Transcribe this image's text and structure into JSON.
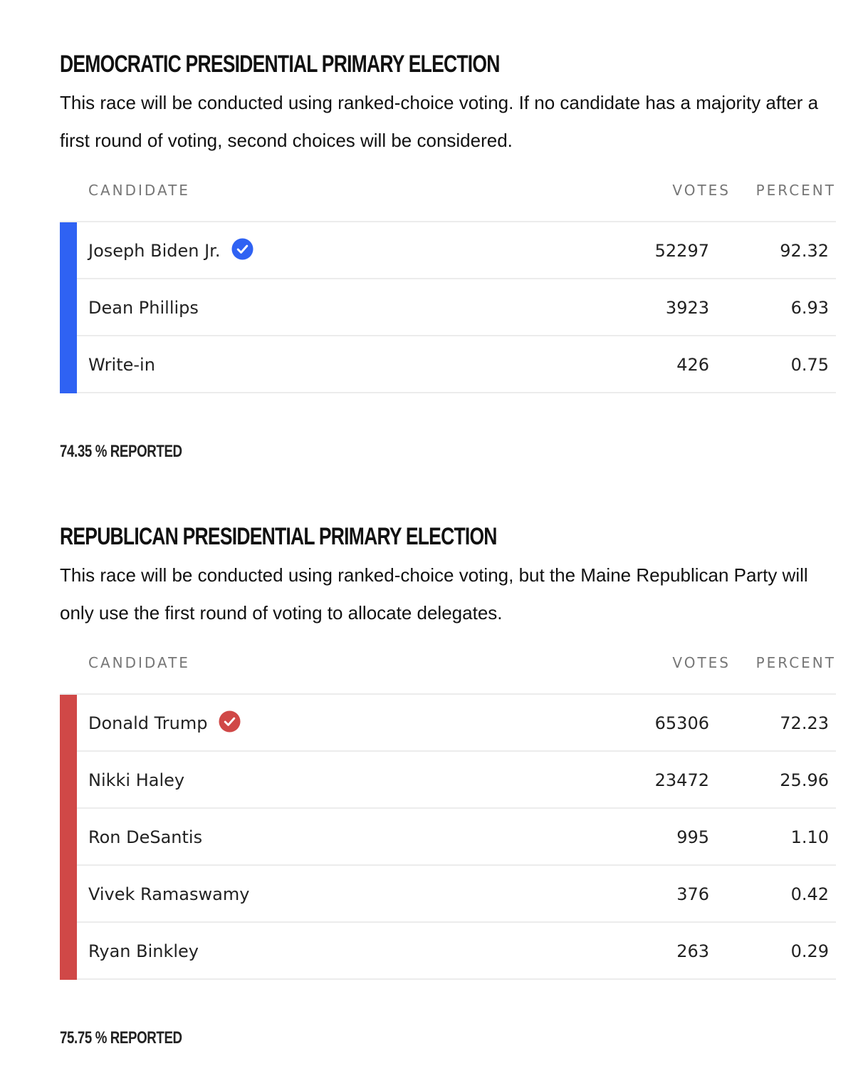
{
  "races": [
    {
      "title": "DEMOCRATIC PRESIDENTIAL PRIMARY ELECTION",
      "description": "This race will be conducted using ranked-choice voting. If no candidate has a majority after a first round of voting, second choices will be considered.",
      "headers": {
        "candidate": "CANDIDATE",
        "votes": "VOTES",
        "percent": "PERCENT"
      },
      "party_color": "#2f62f3",
      "candidates": [
        {
          "name": "Joseph Biden Jr.",
          "votes": "52297",
          "percent": "92.32",
          "winner": true
        },
        {
          "name": "Dean Phillips",
          "votes": "3923",
          "percent": "6.93",
          "winner": false
        },
        {
          "name": "Write-in",
          "votes": "426",
          "percent": "0.75",
          "winner": false
        }
      ],
      "reported": "74.35 % REPORTED"
    },
    {
      "title": "REPUBLICAN PRESIDENTIAL PRIMARY ELECTION",
      "description": "This race will be conducted using ranked-choice voting, but the Maine Republican Party will only use the first round of voting to allocate delegates.",
      "headers": {
        "candidate": "CANDIDATE",
        "votes": "VOTES",
        "percent": "PERCENT"
      },
      "party_color": "#d04847",
      "candidates": [
        {
          "name": "Donald Trump",
          "votes": "65306",
          "percent": "72.23",
          "winner": true
        },
        {
          "name": "Nikki Haley",
          "votes": "23472",
          "percent": "25.96",
          "winner": false
        },
        {
          "name": "Ron DeSantis",
          "votes": "995",
          "percent": "1.10",
          "winner": false
        },
        {
          "name": "Vivek Ramaswamy",
          "votes": "376",
          "percent": "0.42",
          "winner": false
        },
        {
          "name": "Ryan Binkley",
          "votes": "263",
          "percent": "0.29",
          "winner": false
        }
      ],
      "reported": "75.75 % REPORTED"
    }
  ],
  "icons": {
    "winner": "checkmark-circle-icon"
  }
}
